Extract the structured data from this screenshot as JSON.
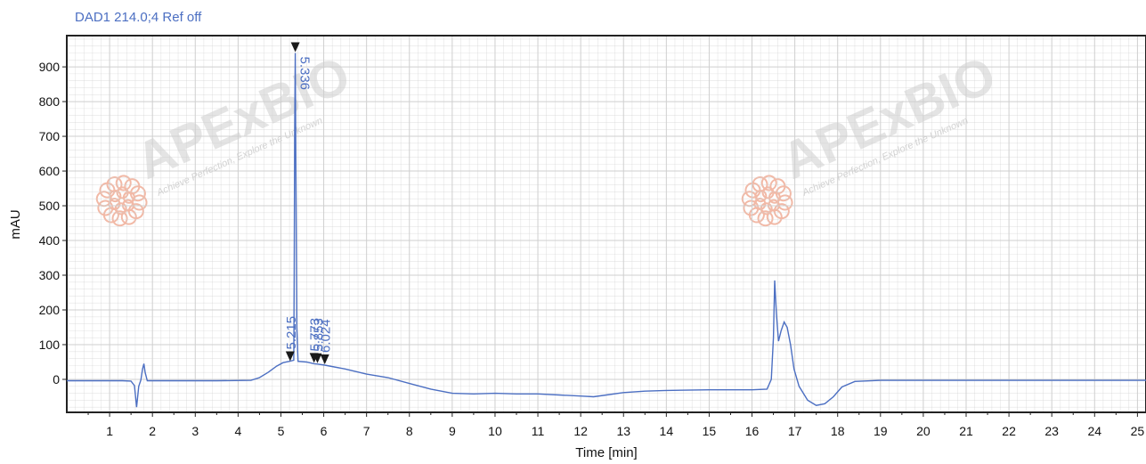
{
  "signal_title": "DAD1 214.0;4 Ref off",
  "colors": {
    "trace": "#4c6fc2",
    "label": "#4c6fc2",
    "grid": "#cfcfcf",
    "frame": "#222222",
    "watermark": "#e4e4e4",
    "logo": "#f2b9a6"
  },
  "watermark": {
    "brand": "APExBIO",
    "tagline": "Achieve Perfection, Explore the Unknown"
  },
  "chart_data": {
    "type": "line",
    "title": "DAD1 214.0;4 Ref off",
    "xlabel": "Time [min]",
    "ylabel": "mAU",
    "xlim": [
      0,
      25.2
    ],
    "ylim": [
      -95,
      990
    ],
    "x_ticks": [
      1,
      2,
      3,
      4,
      5,
      6,
      7,
      8,
      9,
      10,
      11,
      12,
      13,
      14,
      15,
      16,
      17,
      18,
      19,
      20,
      21,
      22,
      23,
      24,
      25
    ],
    "y_ticks": [
      0,
      100,
      200,
      300,
      400,
      500,
      600,
      700,
      800,
      900
    ],
    "grid": true,
    "series": [
      {
        "points": [
          [
            0,
            -4
          ],
          [
            1.3,
            -4
          ],
          [
            1.5,
            -5
          ],
          [
            1.58,
            -18
          ],
          [
            1.63,
            -80
          ],
          [
            1.68,
            -20
          ],
          [
            1.73,
            -2
          ],
          [
            1.77,
            30
          ],
          [
            1.8,
            45
          ],
          [
            1.83,
            20
          ],
          [
            1.88,
            -4
          ],
          [
            2.5,
            -4
          ],
          [
            3.5,
            -4
          ],
          [
            4.3,
            -3
          ],
          [
            4.5,
            5
          ],
          [
            4.7,
            20
          ],
          [
            4.9,
            38
          ],
          [
            5.05,
            48
          ],
          [
            5.2,
            52
          ],
          [
            5.3,
            55
          ],
          [
            5.31,
            300
          ],
          [
            5.32,
            700
          ],
          [
            5.336,
            940
          ],
          [
            5.35,
            600
          ],
          [
            5.37,
            150
          ],
          [
            5.4,
            52
          ],
          [
            5.6,
            50
          ],
          [
            5.773,
            45
          ],
          [
            5.853,
            44
          ],
          [
            6.024,
            41
          ],
          [
            6.5,
            30
          ],
          [
            7,
            15
          ],
          [
            7.5,
            5
          ],
          [
            8,
            -12
          ],
          [
            8.5,
            -28
          ],
          [
            9,
            -40
          ],
          [
            9.5,
            -42
          ],
          [
            10,
            -40
          ],
          [
            10.5,
            -42
          ],
          [
            11,
            -42
          ],
          [
            11.5,
            -45
          ],
          [
            12,
            -48
          ],
          [
            12.3,
            -50
          ],
          [
            12.6,
            -45
          ],
          [
            13,
            -38
          ],
          [
            13.5,
            -34
          ],
          [
            14,
            -32
          ],
          [
            15,
            -30
          ],
          [
            16,
            -30
          ],
          [
            16.35,
            -28
          ],
          [
            16.45,
            0
          ],
          [
            16.5,
            120
          ],
          [
            16.53,
            285
          ],
          [
            16.57,
            190
          ],
          [
            16.62,
            110
          ],
          [
            16.68,
            140
          ],
          [
            16.75,
            165
          ],
          [
            16.82,
            150
          ],
          [
            16.9,
            100
          ],
          [
            16.98,
            30
          ],
          [
            17.1,
            -20
          ],
          [
            17.3,
            -60
          ],
          [
            17.5,
            -75
          ],
          [
            17.7,
            -70
          ],
          [
            17.9,
            -50
          ],
          [
            18.1,
            -22
          ],
          [
            18.4,
            -6
          ],
          [
            19,
            -3
          ],
          [
            20,
            -3
          ],
          [
            21,
            -3
          ],
          [
            22,
            -3
          ],
          [
            23,
            -3
          ],
          [
            24,
            -3
          ],
          [
            25.2,
            -3
          ]
        ]
      }
    ],
    "peak_labels": [
      {
        "rt": "5.215",
        "x": 5.215,
        "y": 50
      },
      {
        "rt": "5.336",
        "x": 5.336,
        "y": 940
      },
      {
        "rt": "5.773",
        "x": 5.773,
        "y": 45
      },
      {
        "rt": "5.853",
        "x": 5.853,
        "y": 44
      },
      {
        "rt": "6.024",
        "x": 6.024,
        "y": 41
      }
    ],
    "peak_label_text": [
      "5.215",
      "5.336",
      "5.773",
      "5.853",
      "6.024"
    ]
  }
}
